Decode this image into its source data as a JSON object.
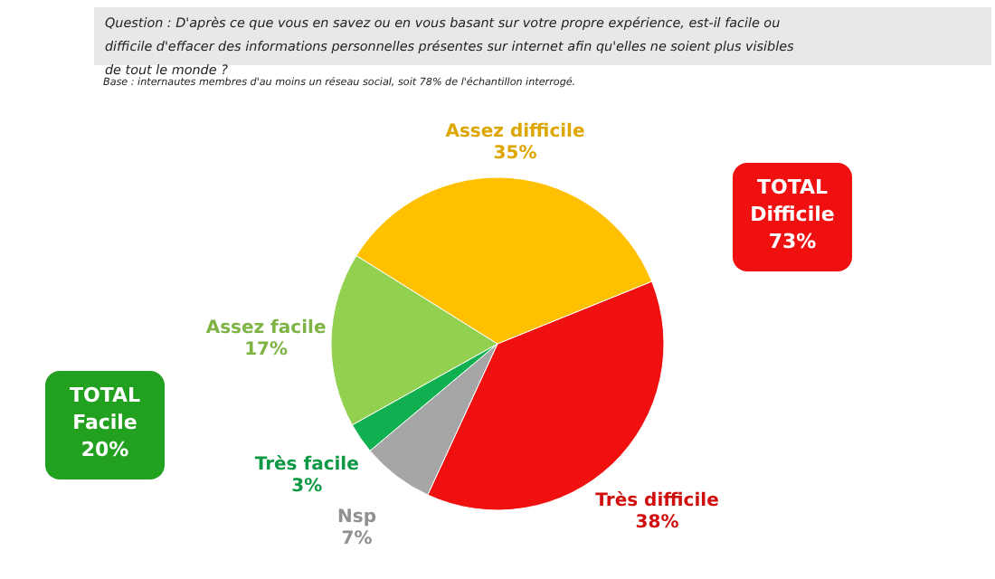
{
  "chart_data": {
    "type": "pie",
    "title": "Question : D'après ce que vous en savez ou en vous basant sur votre propre expérience, est-il facile ou difficile d'effacer des informations personnelles présentes sur internet afin qu'elles ne soient plus visibles de tout le monde ?",
    "subtitle": "Base : internautes membres d'au moins un réseau social, soit 78% de l'échantillon interrogé.",
    "categories": [
      "Très difficile",
      "Nsp",
      "Très facile",
      "Assez facile",
      "Assez difficile"
    ],
    "values": [
      38,
      7,
      3,
      17,
      35
    ],
    "colors": [
      "#f01010",
      "#a6a6a6",
      "#10b050",
      "#92d050",
      "#ffc000"
    ],
    "value_labels": [
      "38%",
      "7%",
      "3%",
      "17%",
      "35%"
    ],
    "annotations": [
      "TOTAL Facile 20%",
      "TOTAL Difficile 73%"
    ]
  }
}
